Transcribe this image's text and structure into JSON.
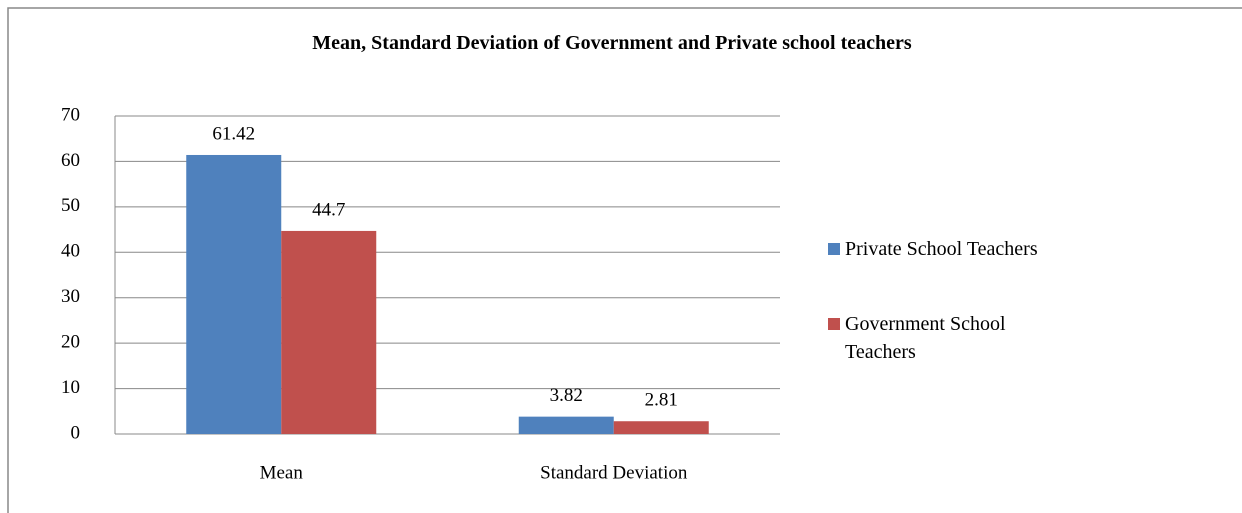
{
  "chart_data": {
    "type": "bar",
    "title": "Mean, Standard Deviation of Government and Private school teachers",
    "categories": [
      "Mean",
      "Standard Deviation"
    ],
    "series": [
      {
        "name": "Private School Teachers",
        "color": "#4f81bd",
        "values": [
          61.42,
          3.82
        ]
      },
      {
        "name": "Government School Teachers",
        "color": "#c0504d",
        "values": [
          44.7,
          2.81
        ]
      }
    ],
    "ylim": [
      0,
      70
    ],
    "yticks": [
      0,
      10,
      20,
      30,
      40,
      50,
      60,
      70
    ],
    "grid": true,
    "legend": "right"
  }
}
